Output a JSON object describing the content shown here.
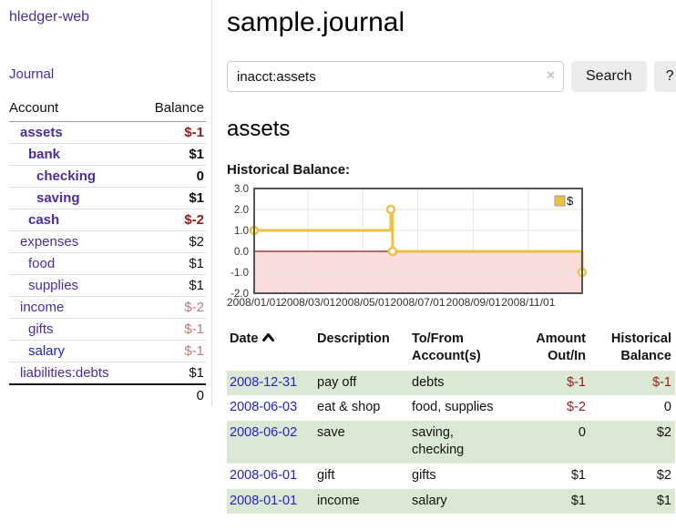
{
  "app": {
    "brand": "hledger-web"
  },
  "sidebar": {
    "journal_link": "Journal",
    "columns": {
      "account": "Account",
      "balance": "Balance"
    },
    "accounts": [
      {
        "name": "assets",
        "balance": "$-1"
      },
      {
        "name": "bank",
        "balance": "$1"
      },
      {
        "name": "checking",
        "balance": "0"
      },
      {
        "name": "saving",
        "balance": "$1"
      },
      {
        "name": "cash",
        "balance": "$-2"
      },
      {
        "name": "expenses",
        "balance": "$2"
      },
      {
        "name": "food",
        "balance": "$1"
      },
      {
        "name": "supplies",
        "balance": "$1"
      },
      {
        "name": "income",
        "balance": "$-2"
      },
      {
        "name": "gifts",
        "balance": "$-1"
      },
      {
        "name": "salary",
        "balance": "$-1"
      },
      {
        "name": "liabilities:debts",
        "balance": "$1"
      }
    ],
    "total": "0"
  },
  "page": {
    "title": "sample.journal",
    "account_heading": "assets",
    "chart_label": "Historical Balance:"
  },
  "search": {
    "value": "inacct:assets",
    "clear_icon": "✕",
    "search_button": "Search",
    "help_button": "?"
  },
  "chart_data": {
    "type": "line",
    "title": "Historical Balance:",
    "series": [
      {
        "name": "$",
        "color": "#edc240",
        "step": true,
        "points": [
          [
            "2008-01-01",
            1
          ],
          [
            "2008-06-01",
            2
          ],
          [
            "2008-06-03",
            0
          ],
          [
            "2008-12-31",
            -1
          ]
        ]
      }
    ],
    "xrange": [
      "2008-01-01",
      "2008-12-31"
    ],
    "xticks": [
      "2008/01/01",
      "2008/03/01",
      "2008/05/01",
      "2008/07/01",
      "2008/09/01",
      "2008/11/01"
    ],
    "yticks": [
      3.0,
      2.0,
      1.0,
      0.0,
      -1.0,
      -2.0
    ],
    "ylim": [
      -2.0,
      3.0
    ],
    "legend": "$",
    "legend_position": "top-right",
    "grid": true,
    "negative_region_fill": "#fbdcdc",
    "zero_line_color": "#8b1a1a",
    "border_color": "#545454",
    "grid_color": "#e6e6e6"
  },
  "register": {
    "columns": {
      "date": "Date",
      "description": "Description",
      "accounts": "To/From Account(s)",
      "amount": "Amount Out/In",
      "balance": "Historical Balance"
    },
    "rows": [
      {
        "date": "2008-12-31",
        "description": "pay off",
        "accounts": "debts",
        "amount": "$-1",
        "balance": "$-1"
      },
      {
        "date": "2008-06-03",
        "description": "eat & shop",
        "accounts": "food, supplies",
        "amount": "$-2",
        "balance": "0"
      },
      {
        "date": "2008-06-02",
        "description": "save",
        "accounts": "saving, checking",
        "amount": "0",
        "balance": "$2"
      },
      {
        "date": "2008-06-01",
        "description": "gift",
        "accounts": "gifts",
        "amount": "$1",
        "balance": "$2"
      },
      {
        "date": "2008-01-01",
        "description": "income",
        "accounts": "salary",
        "amount": "$1",
        "balance": "$1"
      }
    ]
  },
  "colors": {
    "accent_purple": "#4f2a9e",
    "link_blue": "#2222cc",
    "negative_strong": "#961c1c",
    "negative_faded": "#bf7d7d",
    "row_green": "#dbe9d4",
    "series_gold": "#edc240"
  }
}
